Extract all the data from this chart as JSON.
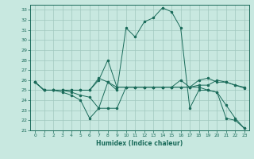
{
  "xlabel": "Humidex (Indice chaleur)",
  "xlim": [
    -0.5,
    23.5
  ],
  "ylim": [
    21,
    33.5
  ],
  "yticks": [
    21,
    22,
    23,
    24,
    25,
    26,
    27,
    28,
    29,
    30,
    31,
    32,
    33
  ],
  "xticks": [
    0,
    1,
    2,
    3,
    4,
    5,
    6,
    7,
    8,
    9,
    10,
    11,
    12,
    13,
    14,
    15,
    16,
    17,
    18,
    19,
    20,
    21,
    22,
    23
  ],
  "bg_color": "#c8e8e0",
  "grid_color": "#a0c8be",
  "line_color": "#1a6b5a",
  "line1_x": [
    0,
    1,
    2,
    3,
    4,
    5,
    6,
    7,
    8,
    9,
    10,
    11,
    12,
    13,
    14,
    15,
    16,
    17,
    18,
    19,
    20,
    21,
    22,
    23
  ],
  "line1_y": [
    25.8,
    25.0,
    25.0,
    24.8,
    24.5,
    24.0,
    22.2,
    23.2,
    25.8,
    25.0,
    31.2,
    30.3,
    31.8,
    32.2,
    33.2,
    32.8,
    31.2,
    23.2,
    25.0,
    25.0,
    24.8,
    22.2,
    22.0,
    21.2
  ],
  "line2_x": [
    0,
    1,
    2,
    3,
    4,
    5,
    6,
    7,
    8,
    9,
    10,
    11,
    12,
    13,
    14,
    15,
    16,
    17,
    18,
    19,
    20,
    21,
    22,
    23
  ],
  "line2_y": [
    25.8,
    25.0,
    25.0,
    25.0,
    25.0,
    25.0,
    25.0,
    26.0,
    28.0,
    25.3,
    25.3,
    25.3,
    25.3,
    25.3,
    25.3,
    25.3,
    25.3,
    25.3,
    26.0,
    26.2,
    25.8,
    25.8,
    25.5,
    25.3
  ],
  "line3_x": [
    0,
    1,
    2,
    3,
    4,
    5,
    6,
    7,
    8,
    9,
    10,
    11,
    12,
    13,
    14,
    15,
    16,
    17,
    18,
    19,
    20,
    21,
    22,
    23
  ],
  "line3_y": [
    25.8,
    25.0,
    25.0,
    25.0,
    24.8,
    24.5,
    24.3,
    23.2,
    23.2,
    23.2,
    25.3,
    25.3,
    25.3,
    25.3,
    25.3,
    25.3,
    25.3,
    25.3,
    25.3,
    25.0,
    24.8,
    23.5,
    22.2,
    21.2
  ],
  "line4_x": [
    0,
    1,
    2,
    3,
    4,
    5,
    6,
    7,
    8,
    9,
    10,
    11,
    12,
    13,
    14,
    15,
    16,
    17,
    18,
    19,
    20,
    21,
    22,
    23
  ],
  "line4_y": [
    25.8,
    25.0,
    25.0,
    25.0,
    25.0,
    25.0,
    25.0,
    26.2,
    25.8,
    25.3,
    25.3,
    25.3,
    25.3,
    25.3,
    25.3,
    25.3,
    26.0,
    25.3,
    25.5,
    25.5,
    26.0,
    25.8,
    25.5,
    25.2
  ]
}
